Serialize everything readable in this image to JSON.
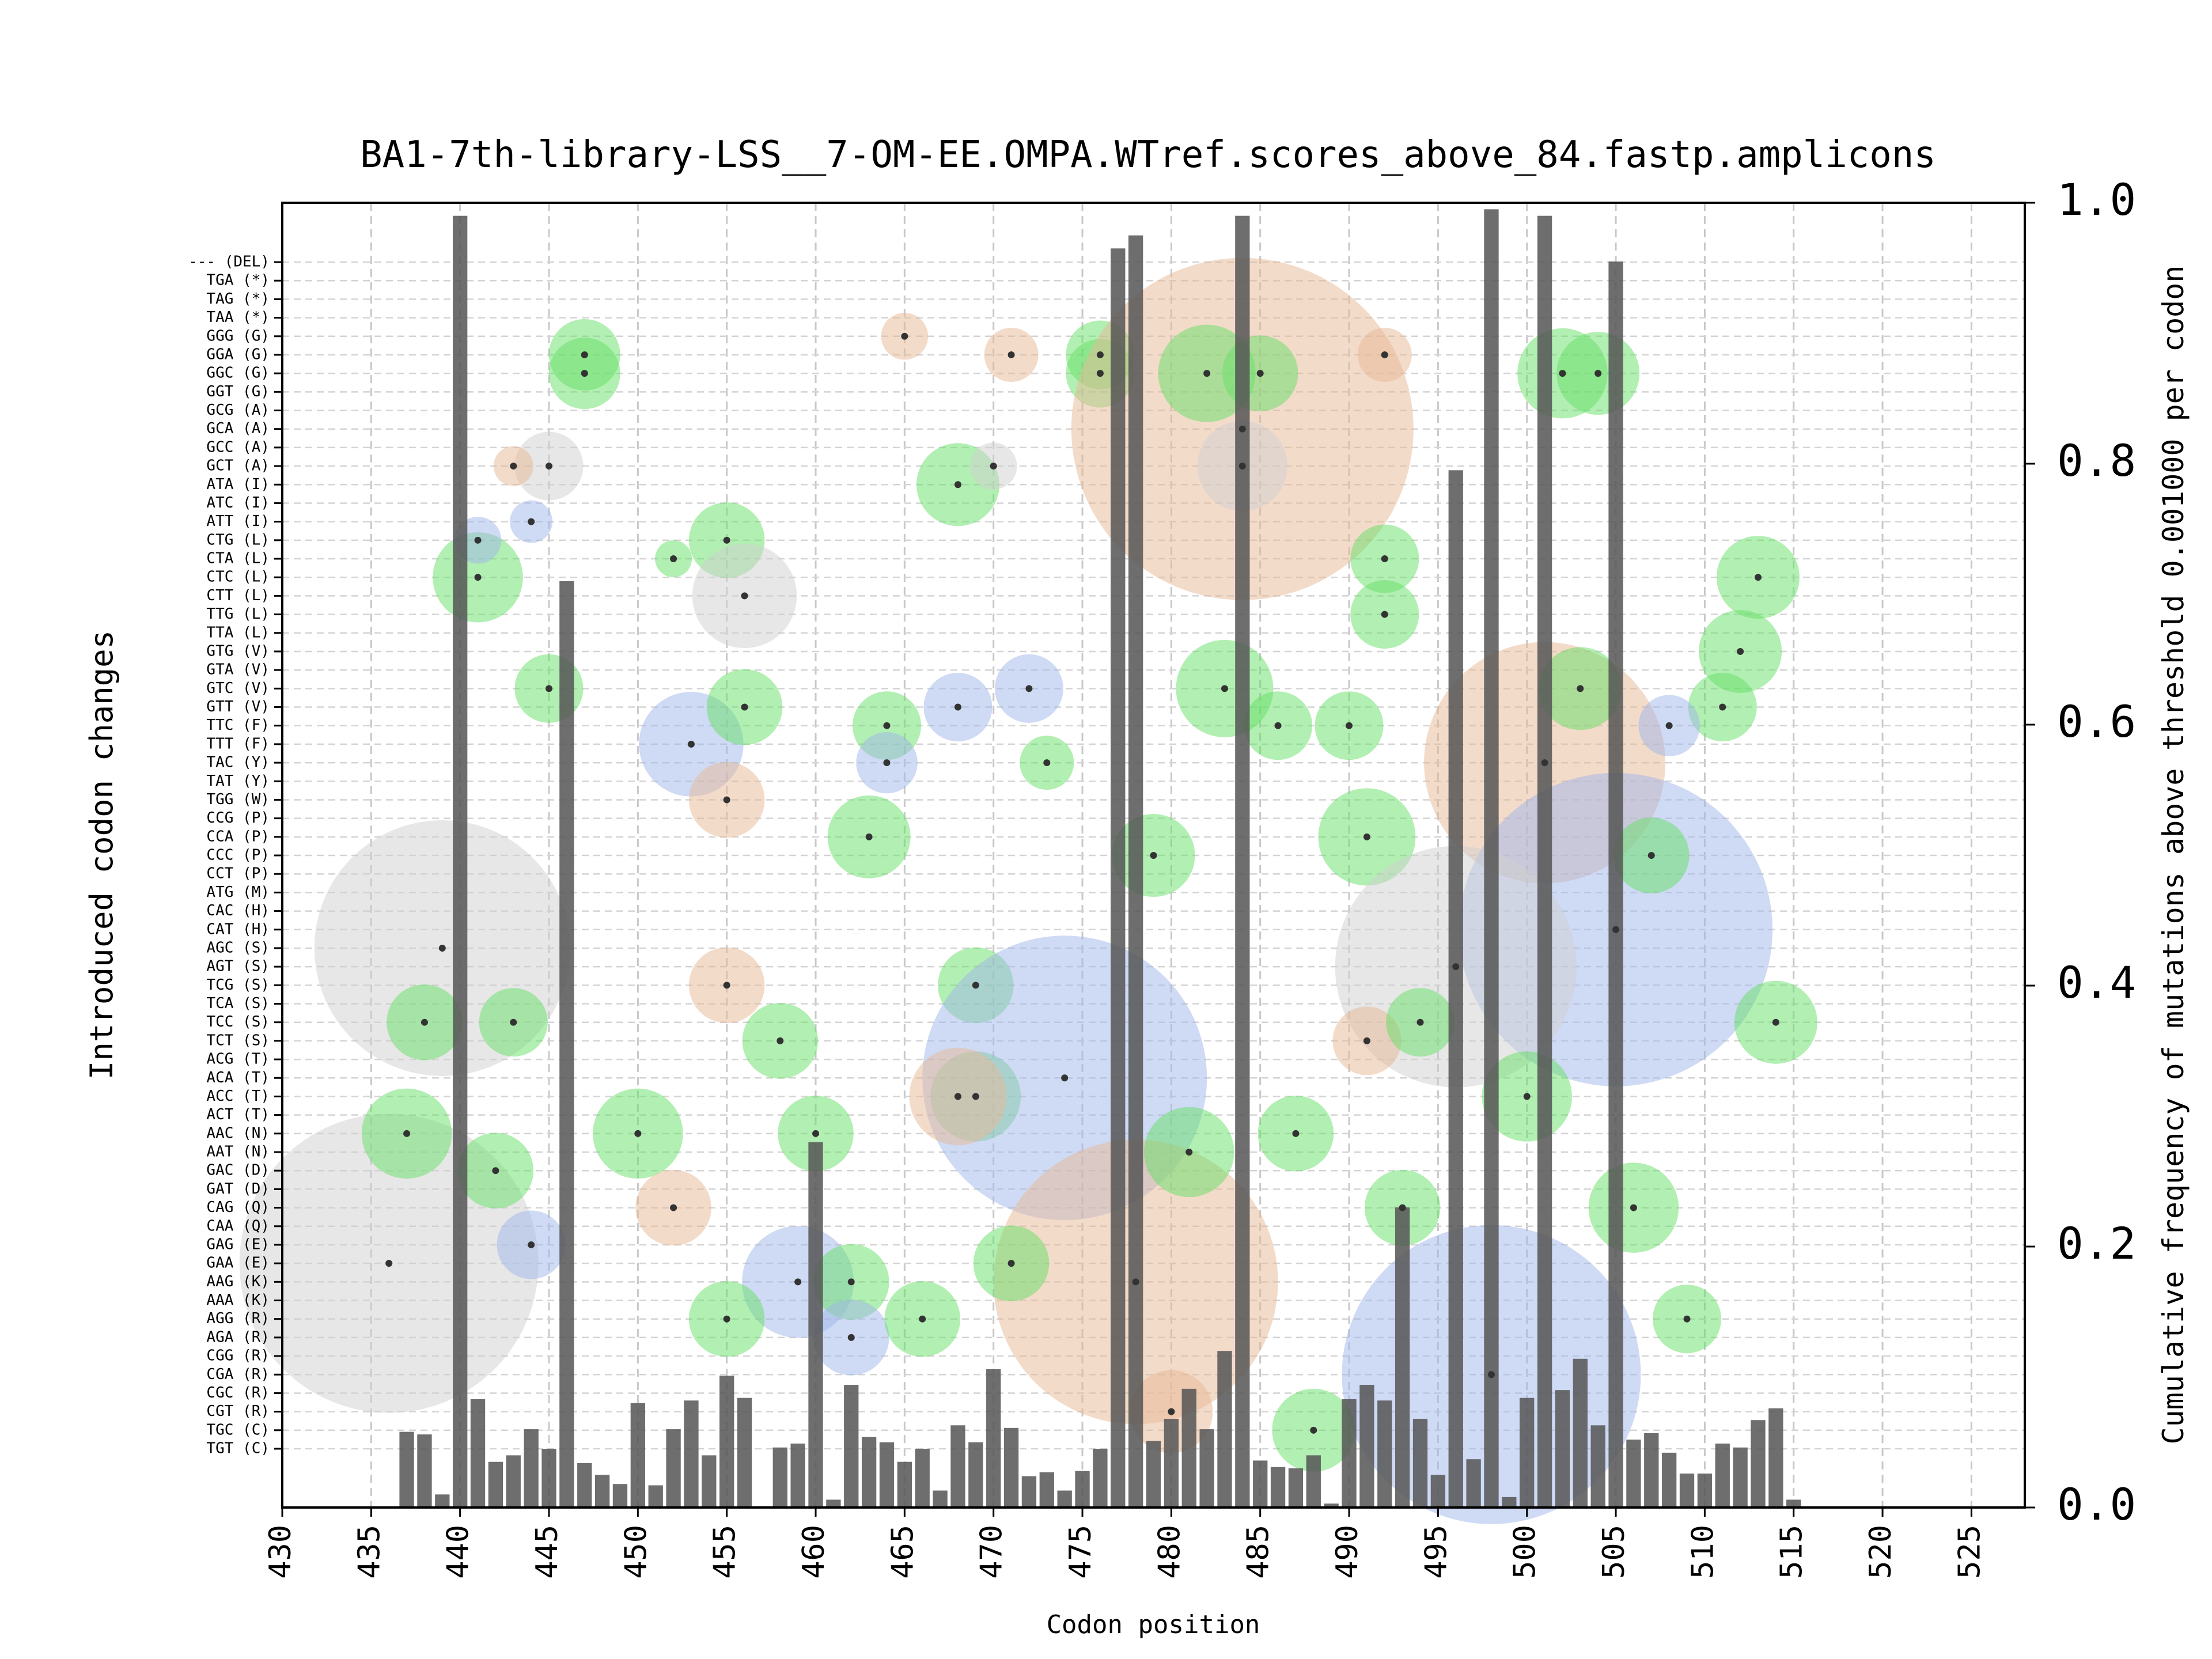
{
  "chart_data": {
    "type": "bar",
    "title": "BA1-7th-library-LSS__7-OM-EE.OMPA.WTref.scores_above_84.fastp.amplicons",
    "xlabel": "Codon position",
    "ylabel_left": "Introduced codon changes",
    "ylabel_right": "Cumulative frequency of mutations above threshold 0.001000 per codon",
    "xlim": [
      430,
      528
    ],
    "ylim": [
      0,
      1.0
    ],
    "xticks": [
      430,
      435,
      440,
      445,
      450,
      455,
      460,
      465,
      470,
      475,
      480,
      485,
      490,
      495,
      500,
      505,
      510,
      515,
      520,
      525
    ],
    "yticks_right": [
      "0.0",
      "0.2",
      "0.4",
      "0.6",
      "0.8",
      "1.0"
    ],
    "grid": true,
    "colors": {
      "bar": "#555555",
      "bubble_green": "#66e066",
      "bubble_orange": "#e8b896",
      "bubble_blue": "#9fb6ea",
      "bubble_gray": "#d0d0d0"
    },
    "codons": [
      "--- (DEL)",
      "TGA (*)",
      "TAG (*)",
      "TAA (*)",
      "GGG (G)",
      "GGA (G)",
      "GGC (G)",
      "GGT (G)",
      "GCG (A)",
      "GCA (A)",
      "GCC (A)",
      "GCT (A)",
      "ATA (I)",
      "ATC (I)",
      "ATT (I)",
      "CTG (L)",
      "CTA (L)",
      "CTC (L)",
      "CTT (L)",
      "TTG (L)",
      "TTA (L)",
      "GTG (V)",
      "GTA (V)",
      "GTC (V)",
      "GTT (V)",
      "TTC (F)",
      "TTT (F)",
      "TAC (Y)",
      "TAT (Y)",
      "TGG (W)",
      "CCG (P)",
      "CCA (P)",
      "CCC (P)",
      "CCT (P)",
      "ATG (M)",
      "CAC (H)",
      "CAT (H)",
      "AGC (S)",
      "AGT (S)",
      "TCG (S)",
      "TCA (S)",
      "TCC (S)",
      "TCT (S)",
      "ACG (T)",
      "ACA (T)",
      "ACC (T)",
      "ACT (T)",
      "AAC (N)",
      "AAT (N)",
      "GAC (D)",
      "GAT (D)",
      "CAG (Q)",
      "CAA (Q)",
      "GAG (E)",
      "GAA (E)",
      "AAG (K)",
      "AAA (K)",
      "AGG (R)",
      "AGA (R)",
      "CGG (R)",
      "CGA (R)",
      "CGC (R)",
      "CGT (R)",
      "TGC (C)",
      "TGT (C)"
    ],
    "bars": [
      {
        "x": 437,
        "y": 0.058
      },
      {
        "x": 438,
        "y": 0.056
      },
      {
        "x": 439,
        "y": 0.01
      },
      {
        "x": 440,
        "y": 0.99
      },
      {
        "x": 441,
        "y": 0.083
      },
      {
        "x": 442,
        "y": 0.035
      },
      {
        "x": 443,
        "y": 0.04
      },
      {
        "x": 444,
        "y": 0.06
      },
      {
        "x": 445,
        "y": 0.045
      },
      {
        "x": 446,
        "y": 0.71
      },
      {
        "x": 447,
        "y": 0.034
      },
      {
        "x": 448,
        "y": 0.025
      },
      {
        "x": 449,
        "y": 0.018
      },
      {
        "x": 450,
        "y": 0.08
      },
      {
        "x": 451,
        "y": 0.017
      },
      {
        "x": 452,
        "y": 0.06
      },
      {
        "x": 453,
        "y": 0.082
      },
      {
        "x": 454,
        "y": 0.04
      },
      {
        "x": 455,
        "y": 0.101
      },
      {
        "x": 456,
        "y": 0.084
      },
      {
        "x": 457,
        "y": 0.001
      },
      {
        "x": 458,
        "y": 0.046
      },
      {
        "x": 459,
        "y": 0.049
      },
      {
        "x": 460,
        "y": 0.28
      },
      {
        "x": 461,
        "y": 0.006
      },
      {
        "x": 462,
        "y": 0.094
      },
      {
        "x": 463,
        "y": 0.054
      },
      {
        "x": 464,
        "y": 0.05
      },
      {
        "x": 465,
        "y": 0.035
      },
      {
        "x": 466,
        "y": 0.045
      },
      {
        "x": 467,
        "y": 0.013
      },
      {
        "x": 468,
        "y": 0.063
      },
      {
        "x": 469,
        "y": 0.05
      },
      {
        "x": 470,
        "y": 0.106
      },
      {
        "x": 471,
        "y": 0.061
      },
      {
        "x": 472,
        "y": 0.024
      },
      {
        "x": 473,
        "y": 0.027
      },
      {
        "x": 474,
        "y": 0.013
      },
      {
        "x": 475,
        "y": 0.028
      },
      {
        "x": 476,
        "y": 0.045
      },
      {
        "x": 477,
        "y": 0.965
      },
      {
        "x": 478,
        "y": 0.975
      },
      {
        "x": 479,
        "y": 0.051
      },
      {
        "x": 480,
        "y": 0.068
      },
      {
        "x": 481,
        "y": 0.091
      },
      {
        "x": 482,
        "y": 0.06
      },
      {
        "x": 483,
        "y": 0.12
      },
      {
        "x": 484,
        "y": 0.99
      },
      {
        "x": 485,
        "y": 0.036
      },
      {
        "x": 486,
        "y": 0.031
      },
      {
        "x": 487,
        "y": 0.03
      },
      {
        "x": 488,
        "y": 0.04
      },
      {
        "x": 489,
        "y": 0.003
      },
      {
        "x": 490,
        "y": 0.083
      },
      {
        "x": 491,
        "y": 0.094
      },
      {
        "x": 492,
        "y": 0.082
      },
      {
        "x": 493,
        "y": 0.23
      },
      {
        "x": 494,
        "y": 0.068
      },
      {
        "x": 495,
        "y": 0.025
      },
      {
        "x": 496,
        "y": 0.795
      },
      {
        "x": 497,
        "y": 0.037
      },
      {
        "x": 498,
        "y": 0.995
      },
      {
        "x": 499,
        "y": 0.008
      },
      {
        "x": 500,
        "y": 0.084
      },
      {
        "x": 501,
        "y": 0.99
      },
      {
        "x": 502,
        "y": 0.09
      },
      {
        "x": 503,
        "y": 0.114
      },
      {
        "x": 504,
        "y": 0.063
      },
      {
        "x": 505,
        "y": 0.955
      },
      {
        "x": 506,
        "y": 0.052
      },
      {
        "x": 507,
        "y": 0.057
      },
      {
        "x": 508,
        "y": 0.042
      },
      {
        "x": 509,
        "y": 0.026
      },
      {
        "x": 510,
        "y": 0.026
      },
      {
        "x": 511,
        "y": 0.049
      },
      {
        "x": 512,
        "y": 0.046
      },
      {
        "x": 513,
        "y": 0.067
      },
      {
        "x": 514,
        "y": 0.076
      },
      {
        "x": 515,
        "y": 0.006
      }
    ],
    "bubbles": [
      {
        "x": 441,
        "codon": "CTC (L)",
        "size": 0.45,
        "color": "green"
      },
      {
        "x": 447,
        "codon": "GGA (G)",
        "size": 0.32,
        "color": "green"
      },
      {
        "x": 447,
        "codon": "GGC (G)",
        "size": 0.32,
        "color": "green"
      },
      {
        "x": 445,
        "codon": "GTC (V)",
        "size": 0.3,
        "color": "green"
      },
      {
        "x": 445,
        "codon": "GCT (A)",
        "size": 0.3,
        "color": "gray"
      },
      {
        "x": 441,
        "codon": "CTG (L)",
        "size": 0.15,
        "color": "blue"
      },
      {
        "x": 444,
        "codon": "ATT (I)",
        "size": 0.12,
        "color": "blue"
      },
      {
        "x": 443,
        "codon": "GCT (A)",
        "size": 0.1,
        "color": "orange"
      },
      {
        "x": 455,
        "codon": "CTG (L)",
        "size": 0.35,
        "color": "green"
      },
      {
        "x": 456,
        "codon": "CTT (L)",
        "size": 0.55,
        "color": "gray"
      },
      {
        "x": 453,
        "codon": "TTT (F)",
        "size": 0.55,
        "color": "blue"
      },
      {
        "x": 456,
        "codon": "GTT (V)",
        "size": 0.35,
        "color": "green"
      },
      {
        "x": 455,
        "codon": "TGG (W)",
        "size": 0.35,
        "color": "orange"
      },
      {
        "x": 452,
        "codon": "CTA (L)",
        "size": 0.08,
        "color": "green"
      },
      {
        "x": 464,
        "codon": "TTC (F)",
        "size": 0.3,
        "color": "green"
      },
      {
        "x": 464,
        "codon": "TAC (Y)",
        "size": 0.25,
        "color": "blue"
      },
      {
        "x": 463,
        "codon": "CCA (P)",
        "size": 0.4,
        "color": "green"
      },
      {
        "x": 465,
        "codon": "GGG (G)",
        "size": 0.15,
        "color": "orange"
      },
      {
        "x": 468,
        "codon": "ATA (I)",
        "size": 0.4,
        "color": "green"
      },
      {
        "x": 468,
        "codon": "GTT (V)",
        "size": 0.3,
        "color": "blue"
      },
      {
        "x": 471,
        "codon": "GGA (G)",
        "size": 0.2,
        "color": "orange"
      },
      {
        "x": 470,
        "codon": "GCT (A)",
        "size": 0.15,
        "color": "gray"
      },
      {
        "x": 472,
        "codon": "GTC (V)",
        "size": 0.3,
        "color": "blue"
      },
      {
        "x": 473,
        "codon": "TAC (Y)",
        "size": 0.2,
        "color": "green"
      },
      {
        "x": 476,
        "codon": "GGA (G)",
        "size": 0.3,
        "color": "green"
      },
      {
        "x": 476,
        "codon": "GGC (G)",
        "size": 0.3,
        "color": "green"
      },
      {
        "x": 484,
        "codon": "GCA (A)",
        "size": 2.2,
        "color": "orange"
      },
      {
        "x": 484,
        "codon": "GCT (A)",
        "size": 0.45,
        "color": "gray"
      },
      {
        "x": 482,
        "codon": "GGC (G)",
        "size": 0.5,
        "color": "green"
      },
      {
        "x": 485,
        "codon": "GGC (G)",
        "size": 0.35,
        "color": "green"
      },
      {
        "x": 483,
        "codon": "GTC (V)",
        "size": 0.5,
        "color": "green"
      },
      {
        "x": 486,
        "codon": "TTC (F)",
        "size": 0.3,
        "color": "green"
      },
      {
        "x": 492,
        "codon": "GGA (G)",
        "size": 0.2,
        "color": "orange"
      },
      {
        "x": 492,
        "codon": "CTA (L)",
        "size": 0.3,
        "color": "green"
      },
      {
        "x": 492,
        "codon": "TTG (L)",
        "size": 0.3,
        "color": "green"
      },
      {
        "x": 490,
        "codon": "TTC (F)",
        "size": 0.3,
        "color": "green"
      },
      {
        "x": 491,
        "codon": "CCA (P)",
        "size": 0.5,
        "color": "green"
      },
      {
        "x": 501,
        "codon": "TAC (Y)",
        "size": 1.5,
        "color": "orange"
      },
      {
        "x": 505,
        "codon": "CAT (H)",
        "size": 2.0,
        "color": "blue"
      },
      {
        "x": 496,
        "codon": "AGT (S)",
        "size": 1.5,
        "color": "gray"
      },
      {
        "x": 503,
        "codon": "GTC (V)",
        "size": 0.4,
        "color": "green"
      },
      {
        "x": 502,
        "codon": "GGC (G)",
        "size": 0.45,
        "color": "green"
      },
      {
        "x": 504,
        "codon": "GGC (G)",
        "size": 0.4,
        "color": "green"
      },
      {
        "x": 512,
        "codon": "GTG (V)",
        "size": 0.4,
        "color": "green"
      },
      {
        "x": 513,
        "codon": "CTC (L)",
        "size": 0.4,
        "color": "green"
      },
      {
        "x": 511,
        "codon": "GTT (V)",
        "size": 0.3,
        "color": "green"
      },
      {
        "x": 514,
        "codon": "TCC (S)",
        "size": 0.4,
        "color": "green"
      },
      {
        "x": 508,
        "codon": "TTC (F)",
        "size": 0.25,
        "color": "blue"
      },
      {
        "x": 439,
        "codon": "AGC (S)",
        "size": 1.6,
        "color": "gray"
      },
      {
        "x": 436,
        "codon": "GAA (E)",
        "size": 1.9,
        "color": "gray"
      },
      {
        "x": 438,
        "codon": "TCC (S)",
        "size": 0.35,
        "color": "green"
      },
      {
        "x": 443,
        "codon": "TCC (S)",
        "size": 0.3,
        "color": "green"
      },
      {
        "x": 437,
        "codon": "AAC (N)",
        "size": 0.45,
        "color": "green"
      },
      {
        "x": 442,
        "codon": "GAC (D)",
        "size": 0.35,
        "color": "green"
      },
      {
        "x": 450,
        "codon": "AAC (N)",
        "size": 0.45,
        "color": "green"
      },
      {
        "x": 452,
        "codon": "CAG (Q)",
        "size": 0.35,
        "color": "orange"
      },
      {
        "x": 444,
        "codon": "GAG (E)",
        "size": 0.3,
        "color": "blue"
      },
      {
        "x": 455,
        "codon": "TCG (S)",
        "size": 0.35,
        "color": "orange"
      },
      {
        "x": 458,
        "codon": "TCT (S)",
        "size": 0.35,
        "color": "green"
      },
      {
        "x": 460,
        "codon": "AAC (N)",
        "size": 0.35,
        "color": "green"
      },
      {
        "x": 459,
        "codon": "AAG (K)",
        "size": 0.6,
        "color": "blue"
      },
      {
        "x": 462,
        "codon": "AAG (K)",
        "size": 0.35,
        "color": "green"
      },
      {
        "x": 462,
        "codon": "AGA (R)",
        "size": 0.35,
        "color": "blue"
      },
      {
        "x": 455,
        "codon": "AGG (R)",
        "size": 0.35,
        "color": "green"
      },
      {
        "x": 466,
        "codon": "AGG (R)",
        "size": 0.35,
        "color": "green"
      },
      {
        "x": 469,
        "codon": "TCG (S)",
        "size": 0.35,
        "color": "green"
      },
      {
        "x": 469,
        "codon": "ACC (T)",
        "size": 0.45,
        "color": "green"
      },
      {
        "x": 474,
        "codon": "ACA (T)",
        "size": 1.8,
        "color": "blue"
      },
      {
        "x": 478,
        "codon": "AAG (K)",
        "size": 1.8,
        "color": "orange"
      },
      {
        "x": 471,
        "codon": "GAA (E)",
        "size": 0.35,
        "color": "green"
      },
      {
        "x": 468,
        "codon": "ACC (T)",
        "size": 0.5,
        "color": "orange"
      },
      {
        "x": 481,
        "codon": "AAT (N)",
        "size": 0.45,
        "color": "green"
      },
      {
        "x": 487,
        "codon": "AAC (N)",
        "size": 0.35,
        "color": "green"
      },
      {
        "x": 479,
        "codon": "CCC (P)",
        "size": 0.4,
        "color": "green"
      },
      {
        "x": 498,
        "codon": "CGA (R)",
        "size": 1.9,
        "color": "blue"
      },
      {
        "x": 493,
        "codon": "CAG (Q)",
        "size": 0.35,
        "color": "green"
      },
      {
        "x": 500,
        "codon": "ACC (T)",
        "size": 0.45,
        "color": "green"
      },
      {
        "x": 491,
        "codon": "TCT (S)",
        "size": 0.3,
        "color": "orange"
      },
      {
        "x": 506,
        "codon": "CAG (Q)",
        "size": 0.45,
        "color": "green"
      },
      {
        "x": 509,
        "codon": "AGG (R)",
        "size": 0.3,
        "color": "green"
      },
      {
        "x": 488,
        "codon": "TGC (C)",
        "size": 0.4,
        "color": "green"
      },
      {
        "x": 480,
        "codon": "CGT (R)",
        "size": 0.4,
        "color": "orange"
      },
      {
        "x": 494,
        "codon": "TCC (S)",
        "size": 0.3,
        "color": "green"
      },
      {
        "x": 507,
        "codon": "CCC (P)",
        "size": 0.35,
        "color": "green"
      }
    ]
  }
}
